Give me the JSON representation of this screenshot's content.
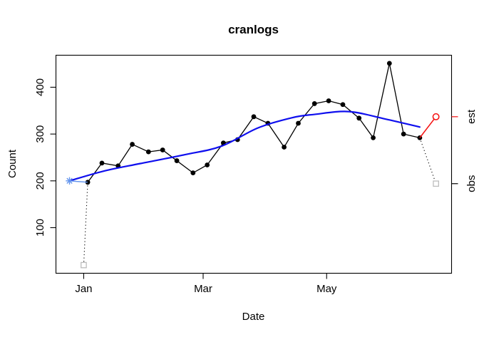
{
  "title": "cranlogs",
  "axes": {
    "x_label": "Date",
    "y_label": "Count",
    "x_ticks": [
      {
        "label": "Jan",
        "day": 0
      },
      {
        "label": "Mar",
        "day": 59
      },
      {
        "label": "May",
        "day": 120
      }
    ],
    "y_ticks": [
      100,
      200,
      300,
      400
    ],
    "right_ticks": [
      {
        "label": "est",
        "value": 337,
        "color": "#f50f0f"
      },
      {
        "label": "obs",
        "value": 194,
        "color": "#000000"
      }
    ]
  },
  "chart_data": {
    "type": "line",
    "title": "cranlogs",
    "xlabel": "Date",
    "ylabel": "Count",
    "x_unit": "days since Jan 1",
    "xlim": [
      -13.7,
      181.7
    ],
    "ylim": [
      2.6,
      468.4
    ],
    "grid": false,
    "legend_position": "none",
    "series": [
      {
        "name": "observed-weekly-counts",
        "type": "line+markers",
        "color": "#000000",
        "marker": "filled-circle",
        "x": [
          2,
          9,
          17,
          24,
          32,
          39,
          46,
          54,
          61,
          69,
          76,
          84,
          91,
          99,
          106,
          114,
          121,
          128,
          136,
          143,
          151,
          158,
          166
        ],
        "values": [
          197,
          238,
          232,
          278,
          262,
          266,
          243,
          217,
          234,
          281,
          288,
          337,
          323,
          272,
          323,
          365,
          371,
          363,
          334,
          292,
          451,
          300,
          292
        ]
      },
      {
        "name": "smoothed-estimate-curve",
        "type": "smooth-line",
        "color": "#0f0fee",
        "marker": "none",
        "x": [
          -7,
          10,
          28,
          50,
          68,
          86,
          103,
          114,
          131,
          149,
          166
        ],
        "values": [
          200,
          221,
          237,
          256,
          274,
          313,
          335,
          342,
          348,
          332,
          315
        ]
      },
      {
        "name": "estimate-start-connector",
        "type": "line",
        "color": "#6495ed",
        "x": [
          -7,
          2
        ],
        "values": [
          200,
          197
        ]
      },
      {
        "name": "estimate-projection",
        "type": "line",
        "color": "#f50f0f",
        "x": [
          166,
          174
        ],
        "values": [
          292,
          337
        ]
      },
      {
        "name": "obs-partial-connector-start",
        "type": "dotted-line",
        "color": "#000000",
        "x": [
          2,
          0
        ],
        "values": [
          197,
          20
        ]
      },
      {
        "name": "obs-partial-connector-end",
        "type": "dotted-line",
        "color": "#000000",
        "x": [
          166,
          174
        ],
        "values": [
          292,
          194
        ]
      }
    ],
    "markers": [
      {
        "name": "estimate-start-star",
        "symbol": "asterisk",
        "color": "#6495ed",
        "x": -7,
        "value": 200
      },
      {
        "name": "estimate-end-circle",
        "symbol": "open-circle",
        "color": "#f50f0f",
        "x": 174,
        "value": 337
      },
      {
        "name": "obs-first-partial-square",
        "symbol": "open-square",
        "color": "#bdbdbd",
        "x": 0,
        "value": 20
      },
      {
        "name": "obs-last-partial-square",
        "symbol": "open-square",
        "color": "#bdbdbd",
        "x": 174,
        "value": 194
      }
    ]
  }
}
